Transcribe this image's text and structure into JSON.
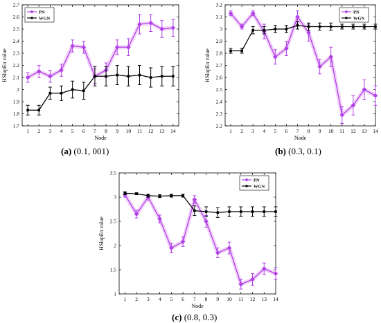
{
  "colors": {
    "PN": "#b040e6",
    "WGN": "#000000",
    "band": "#e8aef5",
    "frame": "#000000"
  },
  "chart_data": [
    {
      "type": "line",
      "caption_letter": "(a)",
      "caption_text": " (0.1, 001)",
      "xlabel": "Node",
      "ylabel": "HSlopEn value",
      "x": [
        1,
        2,
        3,
        4,
        5,
        6,
        7,
        8,
        9,
        10,
        11,
        12,
        13,
        14
      ],
      "xlim": [
        0.5,
        14.5
      ],
      "ylim": [
        1.7,
        2.7
      ],
      "yticks": [
        "1.7",
        "1.8",
        "1.9",
        "2",
        "2.1",
        "2.2",
        "2.3",
        "2.4",
        "2.5",
        "2.6",
        "2.7"
      ],
      "legend": "top-left",
      "series": [
        {
          "name": "PN",
          "values": [
            2.1,
            2.15,
            2.11,
            2.16,
            2.36,
            2.35,
            2.11,
            2.16,
            2.35,
            2.35,
            2.54,
            2.55,
            2.5,
            2.51
          ],
          "errors": [
            0.04,
            0.05,
            0.05,
            0.05,
            0.05,
            0.05,
            0.06,
            0.06,
            0.06,
            0.07,
            0.08,
            0.07,
            0.07,
            0.07
          ]
        },
        {
          "name": "WGN",
          "values": [
            1.83,
            1.83,
            1.97,
            1.97,
            2.0,
            1.99,
            2.11,
            2.11,
            2.12,
            2.11,
            2.12,
            2.1,
            2.11,
            2.11
          ],
          "errors": [
            0.04,
            0.04,
            0.05,
            0.06,
            0.07,
            0.07,
            0.08,
            0.08,
            0.08,
            0.08,
            0.08,
            0.08,
            0.08,
            0.08
          ]
        }
      ]
    },
    {
      "type": "line",
      "caption_letter": "(b)",
      "caption_text": " (0.3, 0.1)",
      "xlabel": "Node",
      "ylabel": "HSlopEn value",
      "x": [
        1,
        2,
        3,
        4,
        5,
        6,
        7,
        8,
        9,
        10,
        11,
        12,
        13,
        14
      ],
      "xlim": [
        0.5,
        14.0
      ],
      "ylim": [
        2.2,
        3.2
      ],
      "yticks": [
        "2.2",
        "2.3",
        "2.4",
        "2.5",
        "2.6",
        "2.7",
        "2.8",
        "2.9",
        "3",
        "3.1",
        "3.2"
      ],
      "legend": "top-right",
      "series": [
        {
          "name": "PN",
          "values": [
            3.13,
            3.02,
            3.13,
            2.98,
            2.77,
            2.84,
            3.1,
            2.97,
            2.69,
            2.77,
            2.29,
            2.37,
            2.5,
            2.45
          ],
          "errors": [
            0.02,
            0.02,
            0.02,
            0.06,
            0.06,
            0.06,
            0.05,
            0.07,
            0.06,
            0.08,
            0.07,
            0.08,
            0.08,
            0.08
          ]
        },
        {
          "name": "WGN",
          "values": [
            2.82,
            2.82,
            2.99,
            2.99,
            3.0,
            3.0,
            3.03,
            3.02,
            3.02,
            3.02,
            3.02,
            3.02,
            3.02,
            3.02
          ],
          "errors": [
            0.02,
            0.02,
            0.03,
            0.03,
            0.03,
            0.03,
            0.03,
            0.03,
            0.03,
            0.03,
            0.02,
            0.02,
            0.02,
            0.02
          ]
        }
      ]
    },
    {
      "type": "line",
      "caption_letter": "(c)",
      "caption_text": " (0.8, 0.3)",
      "xlabel": "Node",
      "ylabel": "HSlopEn value",
      "x": [
        1,
        2,
        3,
        4,
        5,
        6,
        7,
        8,
        9,
        10,
        11,
        12,
        13,
        14
      ],
      "xlim": [
        0.5,
        14.0
      ],
      "ylim": [
        1.0,
        3.5
      ],
      "yticks": [
        "1",
        "1.5",
        "2",
        "2.5",
        "3",
        "3.5"
      ],
      "legend": "top-right",
      "series": [
        {
          "name": "PN",
          "values": [
            3.05,
            2.65,
            3.0,
            2.55,
            1.95,
            2.08,
            2.95,
            2.5,
            1.85,
            1.95,
            1.2,
            1.3,
            1.52,
            1.42
          ],
          "errors": [
            0.05,
            0.08,
            0.06,
            0.08,
            0.1,
            0.1,
            0.08,
            0.12,
            0.1,
            0.12,
            0.1,
            0.12,
            0.12,
            0.12
          ]
        },
        {
          "name": "WGN",
          "values": [
            3.08,
            3.07,
            3.03,
            3.02,
            3.03,
            3.03,
            2.72,
            2.7,
            2.68,
            2.7,
            2.7,
            2.7,
            2.7,
            2.7
          ],
          "errors": [
            0.03,
            0.02,
            0.03,
            0.03,
            0.03,
            0.03,
            0.1,
            0.1,
            0.1,
            0.1,
            0.1,
            0.1,
            0.1,
            0.1
          ]
        }
      ]
    }
  ]
}
